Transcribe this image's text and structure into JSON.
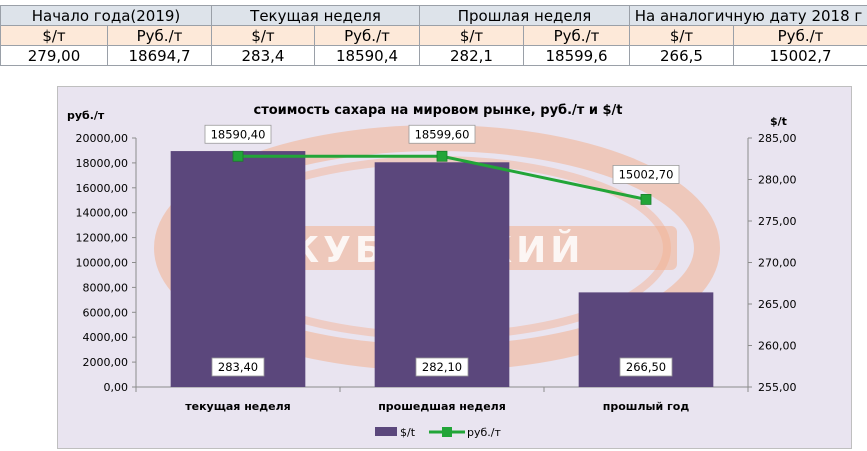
{
  "table": {
    "headers": [
      "Начало года(2019)",
      "Текущая неделя",
      "Прошлая неделя",
      "На аналогичную дату 2018 г"
    ],
    "subheaders": [
      "$/т",
      "Руб./т",
      "$/т",
      "Руб./т",
      "$/т",
      "Руб./т",
      "$/т",
      "Руб./т"
    ],
    "values": [
      "279,00",
      "18694,7",
      "283,4",
      "18590,4",
      "282,1",
      "18599,6",
      "266,5",
      "15002,7"
    ]
  },
  "chart_data": {
    "type": "bar",
    "title": "стоимость сахара на мировом рынке, руб./т и $/t",
    "categories": [
      "текущая  неделя",
      "прошедшая неделя",
      "прошлый год"
    ],
    "y_left_label": "руб./т",
    "y_right_label": "$/t",
    "y_left_range": [
      0,
      20000
    ],
    "y_left_step": 2000,
    "y_right_range": [
      255,
      285
    ],
    "y_right_step": 5,
    "y_left_ticks": [
      "0,00",
      "2000,00",
      "4000,00",
      "6000,00",
      "8000,00",
      "10000,00",
      "12000,00",
      "14000,00",
      "16000,00",
      "18000,00",
      "20000,00"
    ],
    "y_right_ticks": [
      "255,00",
      "260,00",
      "265,00",
      "270,00",
      "275,00",
      "280,00",
      "285,00"
    ],
    "series": [
      {
        "name": "$/t",
        "type": "bar",
        "axis": "left",
        "values": [
          18950,
          18050,
          7600
        ],
        "labels": [
          "283,40",
          "282,10",
          "266,50"
        ],
        "color": "#5b477c"
      },
      {
        "name": "руб./т",
        "type": "line",
        "axis": "right",
        "values": [
          282.8,
          282.8,
          277.6
        ],
        "labels": [
          "18590,40",
          "18599,60",
          "15002,70"
        ],
        "color": "#22a538"
      }
    ],
    "legend_position": "bottom",
    "background": "#e9e4f0",
    "watermark_color": "#f3b08f",
    "watermark_text": "КУБАНСКИЙ"
  }
}
